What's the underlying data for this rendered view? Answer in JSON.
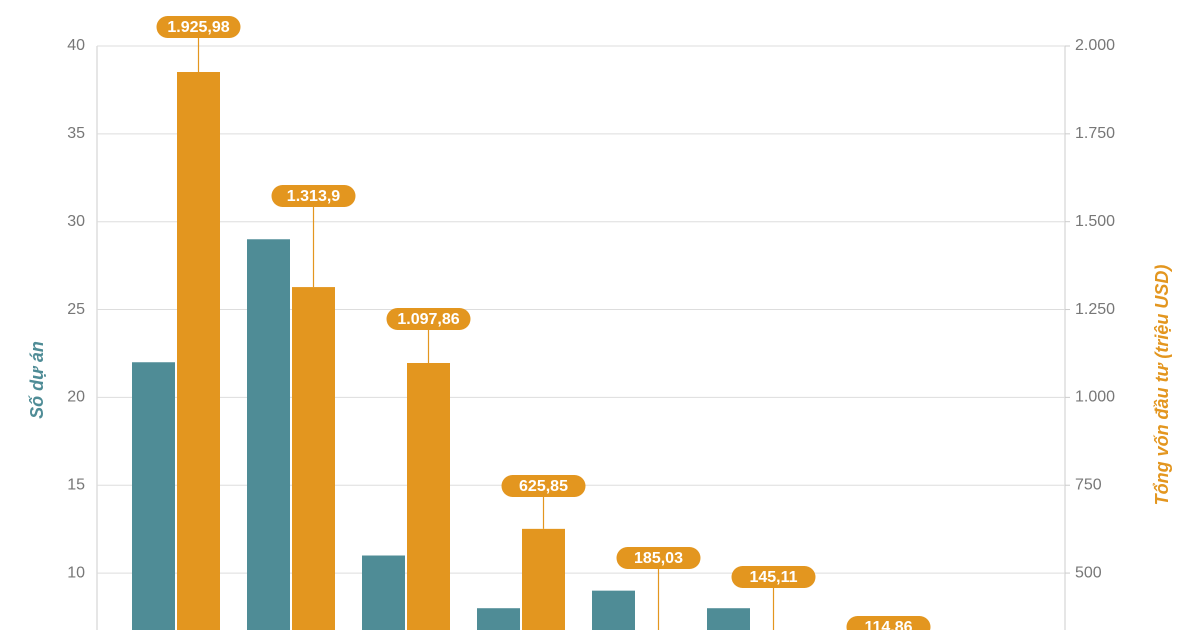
{
  "chart_data": {
    "type": "bar",
    "ylabel": "Số dự án",
    "y2label": "Tổng vốn đầu tư (triệu USD)",
    "categories": [
      null,
      null,
      null,
      null,
      null,
      null,
      null
    ],
    "series": [
      {
        "color": "#4f8c96",
        "values": [
          22,
          29,
          11,
          8,
          9,
          8,
          null
        ]
      },
      {
        "color": "#e3961f",
        "axis": "y2",
        "values": [
          1925.98,
          1313.9,
          1097.86,
          625.85,
          185.03,
          145.11,
          114.86
        ],
        "value_labels": [
          "1.925,98",
          "1.313,9",
          "1.097,86",
          "625,85",
          "185,03",
          "145,11",
          "114,86"
        ]
      }
    ],
    "ylim": [
      6.76,
      40
    ],
    "yticks": [
      10,
      15,
      20,
      25,
      30,
      35,
      40
    ],
    "y2lim": [
      338,
      2000
    ],
    "y2ticks": [
      {
        "value": 500,
        "label": "500"
      },
      {
        "value": 750,
        "label": "750"
      },
      {
        "value": 1000,
        "label": "1.000"
      },
      {
        "value": 1250,
        "label": "1.250"
      },
      {
        "value": 1500,
        "label": "1.500"
      },
      {
        "value": 1750,
        "label": "1.750"
      },
      {
        "value": 2000,
        "label": "2.000"
      }
    ],
    "grid": true
  }
}
